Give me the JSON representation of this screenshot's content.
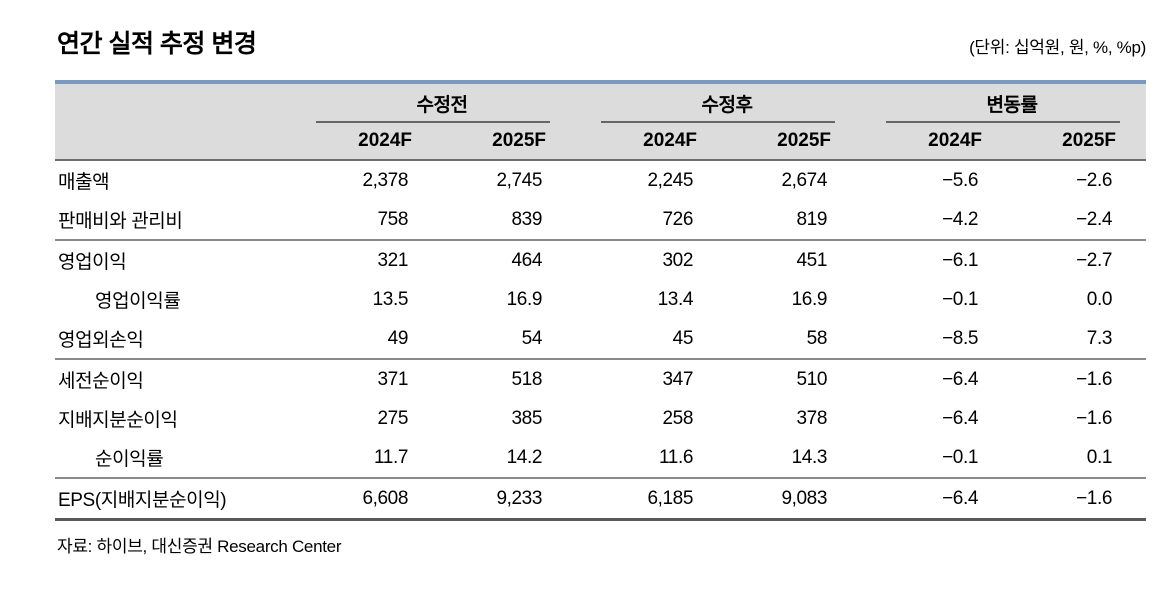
{
  "page": {
    "title": "연간 실적 추정 변경",
    "unit_note": "(단위: 십억원, 원, %, %p)",
    "source": "자료: 하이브, 대신증권 Research Center"
  },
  "colors": {
    "accent_blue": "#7b9ac1",
    "header_bg": "#dcdcdc",
    "line_dark": "#5a5a5a",
    "line_mid": "#8a8a8a",
    "text": "#000000"
  },
  "table": {
    "column_groups": [
      {
        "label": "수정전",
        "columns": [
          "2024F",
          "2025F"
        ]
      },
      {
        "label": "수정후",
        "columns": [
          "2024F",
          "2025F"
        ]
      },
      {
        "label": "변동률",
        "columns": [
          "2024F",
          "2025F"
        ]
      }
    ],
    "rows": [
      {
        "label": "매출액",
        "indent": false,
        "divider_above": false,
        "values": [
          "2,378",
          "2,745",
          "2,245",
          "2,674",
          "−5.6",
          "−2.6"
        ]
      },
      {
        "label": "판매비와 관리비",
        "indent": false,
        "divider_above": false,
        "values": [
          "758",
          "839",
          "726",
          "819",
          "−4.2",
          "−2.4"
        ]
      },
      {
        "label": "영업이익",
        "indent": false,
        "divider_above": true,
        "values": [
          "321",
          "464",
          "302",
          "451",
          "−6.1",
          "−2.7"
        ]
      },
      {
        "label": "영업이익률",
        "indent": true,
        "divider_above": false,
        "values": [
          "13.5",
          "16.9",
          "13.4",
          "16.9",
          "−0.1",
          "0.0"
        ]
      },
      {
        "label": "영업외손익",
        "indent": false,
        "divider_above": false,
        "values": [
          "49",
          "54",
          "45",
          "58",
          "−8.5",
          "7.3"
        ]
      },
      {
        "label": "세전순이익",
        "indent": false,
        "divider_above": true,
        "values": [
          "371",
          "518",
          "347",
          "510",
          "−6.4",
          "−1.6"
        ]
      },
      {
        "label": "지배지분순이익",
        "indent": false,
        "divider_above": false,
        "values": [
          "275",
          "385",
          "258",
          "378",
          "−6.4",
          "−1.6"
        ]
      },
      {
        "label": "순이익률",
        "indent": true,
        "divider_above": false,
        "values": [
          "11.7",
          "14.2",
          "11.6",
          "14.3",
          "−0.1",
          "0.1"
        ]
      },
      {
        "label": "EPS(지배지분순이익)",
        "indent": false,
        "divider_above": true,
        "values": [
          "6,608",
          "9,233",
          "6,185",
          "9,083",
          "−6.4",
          "−1.6"
        ]
      }
    ]
  }
}
